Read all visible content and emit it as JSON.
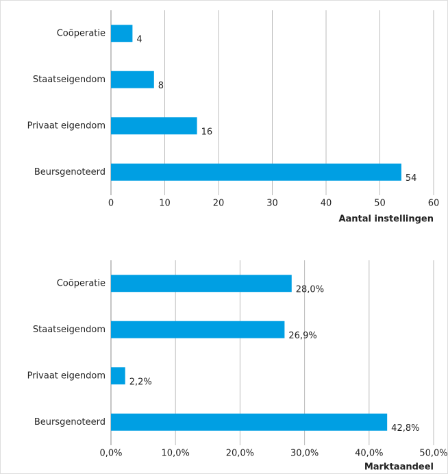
{
  "chart_data": [
    {
      "type": "bar",
      "orientation": "horizontal",
      "categories": [
        "Coöperatie",
        "Staatseigendom",
        "Privaat eigendom",
        "Beursgenoteerd"
      ],
      "values": [
        4,
        8,
        16,
        54
      ],
      "color": "#009fe3",
      "x_label": "Aantal instellingen",
      "xlim": [
        0,
        60
      ],
      "xticks": [
        0,
        10,
        20,
        30,
        40,
        50,
        60
      ],
      "grid": true
    },
    {
      "type": "bar",
      "orientation": "horizontal",
      "categories": [
        "Coöperatie",
        "Staatseigendom",
        "Privaat eigendom",
        "Beursgenoteerd"
      ],
      "values": [
        28.0,
        26.9,
        2.2,
        42.8
      ],
      "value_labels": [
        "28,0%",
        "26,9%",
        "2,2%",
        "42,8%"
      ],
      "color": "#009fe3",
      "x_label": "Marktaandeel",
      "xlim": [
        0,
        50
      ],
      "xticks": [
        {
          "value": 0,
          "label": "0,0%"
        },
        {
          "value": 10,
          "label": "10,0%"
        },
        {
          "value": 20,
          "label": "20,0%"
        },
        {
          "value": 30,
          "label": "30,0%"
        },
        {
          "value": 40,
          "label": "40,0%"
        },
        {
          "value": 50,
          "label": "50,0%"
        }
      ],
      "grid": true
    }
  ]
}
